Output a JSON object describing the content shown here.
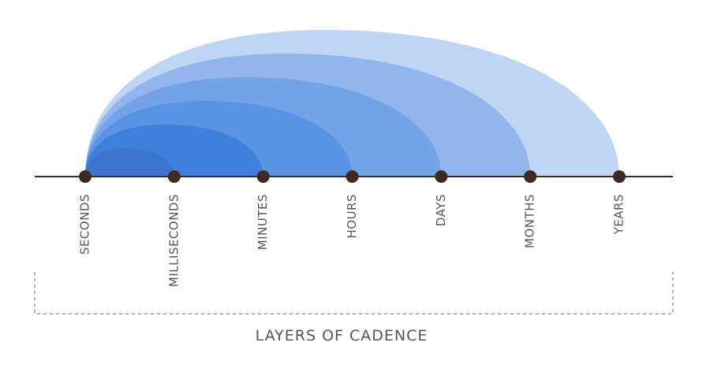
{
  "nodes": [
    "SECONDS",
    "MILLISECONDS",
    "MINUTES",
    "HOURS",
    "DAYS",
    "MONTHS",
    "YEARS"
  ],
  "caption": "LAYERS OF CADENCE"
}
